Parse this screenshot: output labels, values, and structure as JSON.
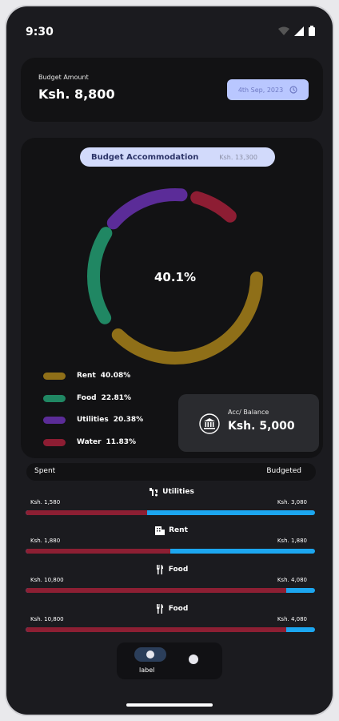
{
  "status": {
    "time": "9:30"
  },
  "budget": {
    "label": "Budget Amount",
    "amount": "Ksh. 8,800",
    "date": "4th Sep, 2023"
  },
  "accommodation": {
    "title": "Budget Accommodation",
    "amount": "Ksh. 13,300"
  },
  "donut": {
    "center_label": "40.1%"
  },
  "legend": [
    {
      "label": "Rent",
      "pct": "40.08%",
      "color": "#8f6f18"
    },
    {
      "label": "Food",
      "pct": "22.81%",
      "color": "#208763"
    },
    {
      "label": "Utilities",
      "pct": "20.38%",
      "color": "#5b2c98"
    },
    {
      "label": "Water",
      "pct": "11.83%",
      "color": "#8d1d33"
    }
  ],
  "balance": {
    "label": "Acc/ Balance",
    "amount": "Ksh. 5,000"
  },
  "spend_header": {
    "left": "Spent",
    "right": "Budgeted"
  },
  "bars": [
    {
      "title": "Utilities",
      "icon": "faucet-icon",
      "spent": "Ksh. 1,580",
      "budgeted": "Ksh. 3,080",
      "spent_fraction": 0.42
    },
    {
      "title": "Rent",
      "icon": "building-icon",
      "spent": "Ksh. 1,880",
      "budgeted": "Ksh. 1,880",
      "spent_fraction": 0.5
    },
    {
      "title": "Food",
      "icon": "utensils-icon",
      "spent": "Ksh. 10,800",
      "budgeted": "Ksh. 4,080",
      "spent_fraction": 0.9
    },
    {
      "title": "Food",
      "icon": "utensils-icon",
      "spent": "Ksh. 10,800",
      "budgeted": "Ksh. 4,080",
      "spent_fraction": 0.9
    }
  ],
  "nav": {
    "label": "label"
  }
}
